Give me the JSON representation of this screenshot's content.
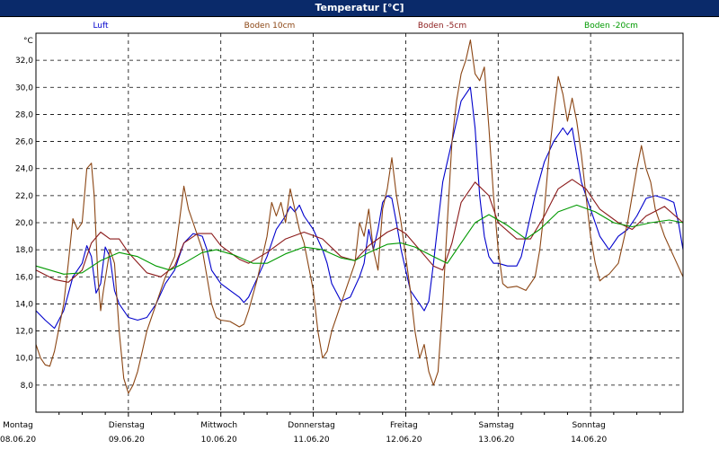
{
  "window": {
    "title": "Temperatur [°C]"
  },
  "chart_data": {
    "type": "line",
    "title": "Temperatur [°C]",
    "ylabel": "°C",
    "ylim": [
      6,
      34
    ],
    "xlim": [
      0,
      7
    ],
    "grid": true,
    "legend_position": "top",
    "yticks": [
      "8,0",
      "10,0",
      "12,0",
      "14,0",
      "16,0",
      "18,0",
      "20,0",
      "22,0",
      "24,0",
      "26,0",
      "28,0",
      "30,0",
      "32,0"
    ],
    "days": [
      {
        "weekday": "Montag",
        "date": "08.06.20"
      },
      {
        "weekday": "Dienstag",
        "date": "09.06.20"
      },
      {
        "weekday": "Mittwoch",
        "date": "10.06.20"
      },
      {
        "weekday": "Donnerstag",
        "date": "11.06.20"
      },
      {
        "weekday": "Freitag",
        "date": "12.06.20"
      },
      {
        "weekday": "Samstag",
        "date": "13.06.20"
      },
      {
        "weekday": "Sonntag",
        "date": "14.06.20"
      }
    ],
    "series": [
      {
        "name": "Luft",
        "color": "#0000cc",
        "points": [
          [
            0,
            13.5
          ],
          [
            0.1,
            12.8
          ],
          [
            0.2,
            12.2
          ],
          [
            0.3,
            13.5
          ],
          [
            0.4,
            16
          ],
          [
            0.5,
            17
          ],
          [
            0.55,
            18.3
          ],
          [
            0.6,
            17.5
          ],
          [
            0.65,
            14.8
          ],
          [
            0.7,
            15.5
          ],
          [
            0.75,
            18.2
          ],
          [
            0.8,
            17.5
          ],
          [
            0.85,
            15
          ],
          [
            0.9,
            14
          ],
          [
            1.0,
            13
          ],
          [
            1.1,
            12.8
          ],
          [
            1.2,
            13
          ],
          [
            1.3,
            14
          ],
          [
            1.4,
            15.5
          ],
          [
            1.5,
            16.5
          ],
          [
            1.55,
            17.5
          ],
          [
            1.6,
            18.5
          ],
          [
            1.7,
            19.2
          ],
          [
            1.8,
            19
          ],
          [
            1.85,
            18
          ],
          [
            1.9,
            16.5
          ],
          [
            2.0,
            15.5
          ],
          [
            2.1,
            15
          ],
          [
            2.2,
            14.5
          ],
          [
            2.25,
            14.1
          ],
          [
            2.3,
            14.5
          ],
          [
            2.4,
            16
          ],
          [
            2.5,
            17.5
          ],
          [
            2.6,
            19.5
          ],
          [
            2.7,
            20.5
          ],
          [
            2.75,
            21.2
          ],
          [
            2.8,
            20.8
          ],
          [
            2.85,
            21.3
          ],
          [
            2.9,
            20.5
          ],
          [
            3.0,
            19.5
          ],
          [
            3.1,
            18
          ],
          [
            3.15,
            17
          ],
          [
            3.2,
            15.5
          ],
          [
            3.3,
            14.2
          ],
          [
            3.4,
            14.5
          ],
          [
            3.5,
            16
          ],
          [
            3.55,
            17
          ],
          [
            3.6,
            19.5
          ],
          [
            3.65,
            18
          ],
          [
            3.7,
            19.5
          ],
          [
            3.75,
            21.5
          ],
          [
            3.8,
            22
          ],
          [
            3.85,
            21.8
          ],
          [
            3.9,
            20
          ],
          [
            3.95,
            18
          ],
          [
            4.0,
            16.5
          ],
          [
            4.05,
            15
          ],
          [
            4.1,
            14.5
          ],
          [
            4.15,
            14
          ],
          [
            4.2,
            13.5
          ],
          [
            4.25,
            14.2
          ],
          [
            4.3,
            17
          ],
          [
            4.35,
            20
          ],
          [
            4.4,
            23
          ],
          [
            4.45,
            24.5
          ],
          [
            4.5,
            26
          ],
          [
            4.55,
            27.5
          ],
          [
            4.6,
            29
          ],
          [
            4.65,
            29.5
          ],
          [
            4.7,
            30
          ],
          [
            4.75,
            27
          ],
          [
            4.8,
            22
          ],
          [
            4.85,
            19
          ],
          [
            4.9,
            17.5
          ],
          [
            4.95,
            17
          ],
          [
            5.0,
            17
          ],
          [
            5.1,
            16.8
          ],
          [
            5.2,
            16.8
          ],
          [
            5.25,
            17.5
          ],
          [
            5.3,
            19
          ],
          [
            5.4,
            22
          ],
          [
            5.5,
            24.5
          ],
          [
            5.6,
            26
          ],
          [
            5.7,
            27
          ],
          [
            5.75,
            26.5
          ],
          [
            5.8,
            27
          ],
          [
            5.85,
            25
          ],
          [
            5.9,
            23
          ],
          [
            6.0,
            21
          ],
          [
            6.1,
            19
          ],
          [
            6.2,
            18
          ],
          [
            6.3,
            19
          ],
          [
            6.4,
            19.5
          ],
          [
            6.5,
            20.5
          ],
          [
            6.6,
            21.8
          ],
          [
            6.7,
            22
          ],
          [
            6.8,
            21.8
          ],
          [
            6.9,
            21.5
          ],
          [
            6.95,
            20
          ],
          [
            7.0,
            18
          ]
        ]
      },
      {
        "name": "Boden 10cm",
        "color": "#8b4513",
        "points": [
          [
            0,
            11
          ],
          [
            0.05,
            10
          ],
          [
            0.1,
            9.5
          ],
          [
            0.15,
            9.4
          ],
          [
            0.2,
            10.5
          ],
          [
            0.3,
            14
          ],
          [
            0.35,
            17
          ],
          [
            0.4,
            20.3
          ],
          [
            0.45,
            19.5
          ],
          [
            0.5,
            20
          ],
          [
            0.55,
            24
          ],
          [
            0.6,
            24.4
          ],
          [
            0.63,
            22
          ],
          [
            0.67,
            16
          ],
          [
            0.7,
            13.5
          ],
          [
            0.73,
            15
          ],
          [
            0.8,
            18
          ],
          [
            0.85,
            17
          ],
          [
            0.9,
            12
          ],
          [
            0.95,
            8.5
          ],
          [
            1.0,
            7.4
          ],
          [
            1.05,
            8
          ],
          [
            1.1,
            9
          ],
          [
            1.15,
            10.5
          ],
          [
            1.2,
            12
          ],
          [
            1.3,
            14
          ],
          [
            1.4,
            16
          ],
          [
            1.5,
            17.5
          ],
          [
            1.55,
            20
          ],
          [
            1.6,
            22.7
          ],
          [
            1.65,
            21
          ],
          [
            1.7,
            20
          ],
          [
            1.75,
            19
          ],
          [
            1.8,
            18
          ],
          [
            1.85,
            16
          ],
          [
            1.9,
            14
          ],
          [
            1.95,
            13
          ],
          [
            2.0,
            12.8
          ],
          [
            2.1,
            12.7
          ],
          [
            2.2,
            12.3
          ],
          [
            2.25,
            12.5
          ],
          [
            2.3,
            13.5
          ],
          [
            2.4,
            16
          ],
          [
            2.5,
            19
          ],
          [
            2.55,
            21.5
          ],
          [
            2.6,
            20.5
          ],
          [
            2.65,
            21.5
          ],
          [
            2.7,
            20
          ],
          [
            2.75,
            22.5
          ],
          [
            2.8,
            21
          ],
          [
            2.85,
            19.5
          ],
          [
            2.9,
            18.5
          ],
          [
            3.0,
            15
          ],
          [
            3.05,
            12
          ],
          [
            3.1,
            10
          ],
          [
            3.15,
            10.5
          ],
          [
            3.2,
            12
          ],
          [
            3.3,
            14
          ],
          [
            3.4,
            16
          ],
          [
            3.45,
            17
          ],
          [
            3.5,
            20
          ],
          [
            3.55,
            19
          ],
          [
            3.6,
            21
          ],
          [
            3.65,
            18
          ],
          [
            3.7,
            16.5
          ],
          [
            3.75,
            21
          ],
          [
            3.8,
            22.5
          ],
          [
            3.85,
            24.8
          ],
          [
            3.9,
            22
          ],
          [
            3.95,
            20
          ],
          [
            4.0,
            17.5
          ],
          [
            4.05,
            15
          ],
          [
            4.1,
            12
          ],
          [
            4.15,
            10
          ],
          [
            4.2,
            11
          ],
          [
            4.25,
            9
          ],
          [
            4.3,
            8
          ],
          [
            4.35,
            9
          ],
          [
            4.4,
            14
          ],
          [
            4.45,
            20
          ],
          [
            4.5,
            26
          ],
          [
            4.55,
            29
          ],
          [
            4.6,
            31
          ],
          [
            4.65,
            32
          ],
          [
            4.7,
            33.5
          ],
          [
            4.75,
            31
          ],
          [
            4.8,
            30.5
          ],
          [
            4.85,
            31.5
          ],
          [
            4.9,
            27
          ],
          [
            4.95,
            22
          ],
          [
            5.0,
            18
          ],
          [
            5.05,
            15.5
          ],
          [
            5.1,
            15.2
          ],
          [
            5.2,
            15.3
          ],
          [
            5.3,
            15
          ],
          [
            5.4,
            16
          ],
          [
            5.45,
            18
          ],
          [
            5.5,
            21
          ],
          [
            5.55,
            25
          ],
          [
            5.6,
            28
          ],
          [
            5.65,
            30.8
          ],
          [
            5.7,
            29.5
          ],
          [
            5.75,
            27.5
          ],
          [
            5.8,
            29.2
          ],
          [
            5.85,
            27.5
          ],
          [
            5.9,
            25
          ],
          [
            5.95,
            22
          ],
          [
            6.0,
            19
          ],
          [
            6.05,
            17
          ],
          [
            6.1,
            15.7
          ],
          [
            6.15,
            16
          ],
          [
            6.2,
            16.2
          ],
          [
            6.3,
            17
          ],
          [
            6.4,
            20
          ],
          [
            6.45,
            22
          ],
          [
            6.5,
            24
          ],
          [
            6.55,
            25.7
          ],
          [
            6.6,
            24
          ],
          [
            6.65,
            23
          ],
          [
            6.7,
            21
          ],
          [
            6.8,
            19
          ],
          [
            6.9,
            17.5
          ],
          [
            7.0,
            16
          ]
        ]
      },
      {
        "name": "Boden -5cm",
        "color": "#8b1a1a",
        "points": [
          [
            0,
            16.5
          ],
          [
            0.2,
            15.8
          ],
          [
            0.35,
            15.6
          ],
          [
            0.5,
            16.5
          ],
          [
            0.6,
            18.5
          ],
          [
            0.7,
            19.3
          ],
          [
            0.8,
            18.8
          ],
          [
            0.9,
            18.8
          ],
          [
            1.0,
            17.8
          ],
          [
            1.2,
            16.3
          ],
          [
            1.35,
            16
          ],
          [
            1.5,
            16.8
          ],
          [
            1.6,
            18.5
          ],
          [
            1.75,
            19.2
          ],
          [
            1.9,
            19.2
          ],
          [
            2.0,
            18.3
          ],
          [
            2.2,
            17.3
          ],
          [
            2.3,
            17
          ],
          [
            2.5,
            17.8
          ],
          [
            2.7,
            18.8
          ],
          [
            2.9,
            19.3
          ],
          [
            3.1,
            18.8
          ],
          [
            3.3,
            17.5
          ],
          [
            3.45,
            17.2
          ],
          [
            3.6,
            18.3
          ],
          [
            3.8,
            19.3
          ],
          [
            3.9,
            19.6
          ],
          [
            4.0,
            19.2
          ],
          [
            4.15,
            18
          ],
          [
            4.3,
            16.8
          ],
          [
            4.4,
            16.5
          ],
          [
            4.5,
            18.5
          ],
          [
            4.6,
            21.5
          ],
          [
            4.75,
            23
          ],
          [
            4.9,
            22
          ],
          [
            5.0,
            20
          ],
          [
            5.2,
            18.8
          ],
          [
            5.35,
            18.8
          ],
          [
            5.5,
            20.5
          ],
          [
            5.65,
            22.5
          ],
          [
            5.8,
            23.2
          ],
          [
            5.95,
            22.5
          ],
          [
            6.1,
            21
          ],
          [
            6.3,
            20
          ],
          [
            6.45,
            19.5
          ],
          [
            6.6,
            20.5
          ],
          [
            6.8,
            21.2
          ],
          [
            7.0,
            20
          ]
        ]
      },
      {
        "name": "Boden -20cm",
        "color": "#009900",
        "points": [
          [
            0,
            16.8
          ],
          [
            0.3,
            16.2
          ],
          [
            0.5,
            16.3
          ],
          [
            0.7,
            17.2
          ],
          [
            0.9,
            17.8
          ],
          [
            1.1,
            17.5
          ],
          [
            1.3,
            16.8
          ],
          [
            1.45,
            16.5
          ],
          [
            1.6,
            17
          ],
          [
            1.8,
            17.8
          ],
          [
            1.95,
            18
          ],
          [
            2.15,
            17.6
          ],
          [
            2.35,
            17
          ],
          [
            2.5,
            17
          ],
          [
            2.7,
            17.7
          ],
          [
            2.9,
            18.2
          ],
          [
            3.1,
            18
          ],
          [
            3.3,
            17.4
          ],
          [
            3.45,
            17.2
          ],
          [
            3.6,
            17.8
          ],
          [
            3.8,
            18.4
          ],
          [
            3.95,
            18.5
          ],
          [
            4.1,
            18.2
          ],
          [
            4.3,
            17.5
          ],
          [
            4.45,
            17
          ],
          [
            4.6,
            18.5
          ],
          [
            4.75,
            20
          ],
          [
            4.9,
            20.6
          ],
          [
            5.1,
            19.8
          ],
          [
            5.3,
            18.8
          ],
          [
            5.45,
            19.5
          ],
          [
            5.65,
            20.8
          ],
          [
            5.85,
            21.3
          ],
          [
            6.05,
            20.8
          ],
          [
            6.25,
            20
          ],
          [
            6.45,
            19.7
          ],
          [
            6.65,
            20
          ],
          [
            6.85,
            20.2
          ],
          [
            7.0,
            20
          ]
        ]
      }
    ]
  }
}
